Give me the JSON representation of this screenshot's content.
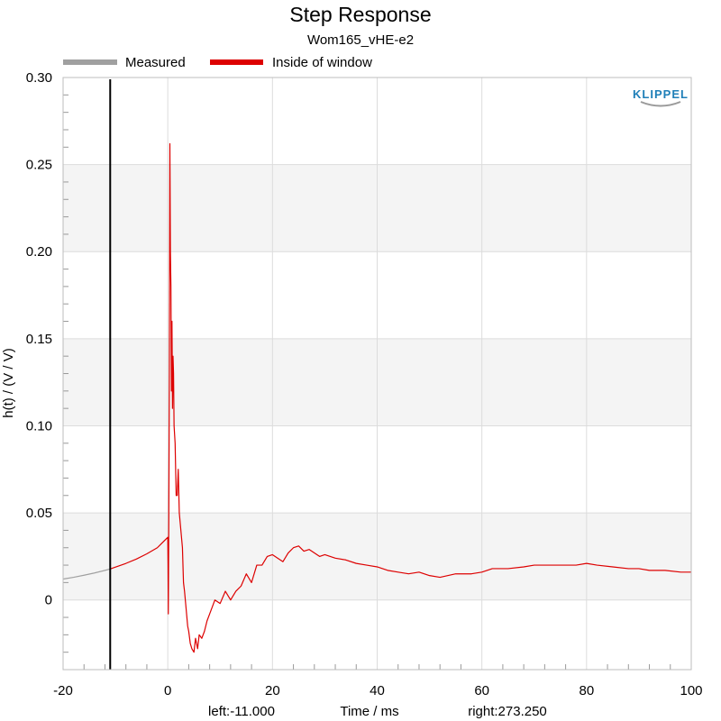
{
  "chart_data": {
    "type": "line",
    "title": "Step Response",
    "subtitle": "Wom165_vHE-e2",
    "xlabel": "Time / ms",
    "ylabel": "h(t) / (V / V)",
    "xlim": [
      -20,
      100
    ],
    "ylim": [
      -0.04,
      0.3
    ],
    "x_ticks": [
      "-20",
      "0",
      "20",
      "40",
      "60",
      "80",
      "100"
    ],
    "x_tick_values": [
      -20,
      0,
      20,
      40,
      60,
      80,
      100
    ],
    "y_ticks": [
      "0",
      "0.05",
      "0.10",
      "0.15",
      "0.20",
      "0.25",
      "0.30"
    ],
    "y_tick_values": [
      0,
      0.05,
      0.1,
      0.15,
      0.2,
      0.25,
      0.3
    ],
    "grid": true,
    "legend_position": "top-left",
    "series": [
      {
        "name": "Measured",
        "color": "#a0a0a0",
        "x": [
          -20,
          -18,
          -16,
          -14,
          -12,
          -11
        ],
        "y": [
          0.012,
          0.013,
          0.0142,
          0.0155,
          0.017,
          0.0178
        ]
      },
      {
        "name": "Inside of window",
        "color": "#dd0000",
        "x": [
          -11,
          -8,
          -6,
          -4,
          -2,
          -1,
          0,
          0.05,
          0.1,
          0.2,
          0.3,
          0.4,
          0.5,
          0.6,
          0.7,
          0.8,
          0.9,
          1.0,
          1.1,
          1.2,
          1.4,
          1.6,
          1.8,
          2.0,
          2.2,
          2.5,
          2.8,
          3.0,
          3.2,
          3.5,
          3.8,
          4.0,
          4.3,
          4.6,
          5.0,
          5.3,
          5.7,
          6.0,
          6.5,
          7.0,
          7.5,
          8.0,
          9.0,
          10.0,
          11.0,
          12.0,
          13.0,
          14.0,
          15.0,
          16.0,
          17.0,
          18.0,
          19.0,
          20.0,
          21.0,
          22.0,
          23.0,
          24.0,
          25.0,
          26.0,
          27.0,
          28.0,
          29.0,
          30.0,
          32.0,
          34.0,
          36.0,
          38.0,
          40.0,
          42.0,
          44.0,
          46.0,
          48.0,
          50.0,
          52.0,
          55.0,
          58.0,
          60.0,
          62.0,
          65.0,
          68.0,
          70.0,
          72.0,
          75.0,
          78.0,
          80.0,
          82.0,
          85.0,
          88.0,
          90.0,
          92.0,
          95.0,
          98.0,
          100.0
        ],
        "y": [
          0.0178,
          0.021,
          0.0235,
          0.0265,
          0.03,
          0.033,
          0.036,
          0.02,
          -0.008,
          0.05,
          0.13,
          0.262,
          0.2,
          0.18,
          0.12,
          0.16,
          0.11,
          0.14,
          0.13,
          0.1,
          0.09,
          0.06,
          0.06,
          0.075,
          0.05,
          0.04,
          0.03,
          0.01,
          0.005,
          -0.005,
          -0.015,
          -0.018,
          -0.025,
          -0.028,
          -0.03,
          -0.022,
          -0.028,
          -0.02,
          -0.022,
          -0.018,
          -0.012,
          -0.008,
          0.0,
          -0.002,
          0.005,
          0.0,
          0.005,
          0.008,
          0.015,
          0.01,
          0.02,
          0.02,
          0.025,
          0.026,
          0.024,
          0.022,
          0.027,
          0.03,
          0.031,
          0.028,
          0.029,
          0.027,
          0.025,
          0.026,
          0.024,
          0.023,
          0.021,
          0.02,
          0.019,
          0.017,
          0.016,
          0.015,
          0.016,
          0.014,
          0.013,
          0.015,
          0.015,
          0.016,
          0.018,
          0.018,
          0.019,
          0.02,
          0.02,
          0.02,
          0.02,
          0.021,
          0.02,
          0.019,
          0.018,
          0.018,
          0.017,
          0.017,
          0.016,
          0.016
        ]
      }
    ],
    "window_marker": {
      "x": -11,
      "color": "#000000"
    }
  },
  "brand": "KLIPPEL",
  "footer": {
    "left": "left:-11.000",
    "right": "right:273.250"
  }
}
